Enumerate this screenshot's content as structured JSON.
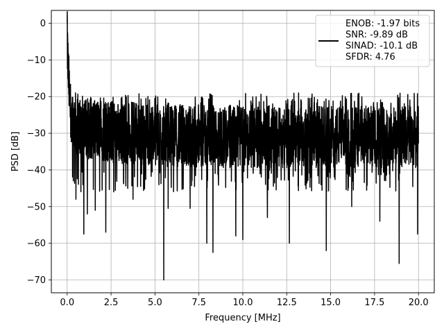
{
  "chart_data": {
    "type": "line",
    "xlabel": "Frequency [MHz]",
    "ylabel": "PSD [dB]",
    "xlim": [
      -0.9,
      20.9
    ],
    "ylim": [
      -73.5,
      3.5
    ],
    "xticks": [
      0.0,
      2.5,
      5.0,
      7.5,
      10.0,
      12.5,
      15.0,
      17.5,
      20.0
    ],
    "xtick_labels": [
      "0.0",
      "2.5",
      "5.0",
      "7.5",
      "10.0",
      "12.5",
      "15.0",
      "17.5",
      "20.0"
    ],
    "yticks": [
      0,
      -10,
      -20,
      -30,
      -40,
      -50,
      -60,
      -70
    ],
    "ytick_labels": [
      "0",
      "−10",
      "−20",
      "−30",
      "−40",
      "−50",
      "−60",
      "−70"
    ],
    "grid": true,
    "legend_position": "top-right",
    "series_color": "#000000",
    "legend_lines": [
      "ENOB: -1.97 bits",
      "SNR: -9.89 dB",
      "SINAD: -10.1 dB",
      "SFDR: 4.76"
    ],
    "series_summary": {
      "x_start": 0.0,
      "x_end": 20.0,
      "peak_value": 0,
      "peak_x": 0.0,
      "noise_floor_mean": -31,
      "noise_upper_typical": -22,
      "noise_lower_typical": -40
    },
    "notable_dips": [
      {
        "x": 0.35,
        "y": -43
      },
      {
        "x": 0.5,
        "y": -48
      },
      {
        "x": 0.95,
        "y": -57.5
      },
      {
        "x": 1.15,
        "y": -52
      },
      {
        "x": 1.6,
        "y": -51
      },
      {
        "x": 2.2,
        "y": -57
      },
      {
        "x": 2.65,
        "y": -46
      },
      {
        "x": 3.75,
        "y": -48
      },
      {
        "x": 5.5,
        "y": -70
      },
      {
        "x": 5.75,
        "y": -50.5
      },
      {
        "x": 7.0,
        "y": -50.5
      },
      {
        "x": 7.95,
        "y": -60
      },
      {
        "x": 8.3,
        "y": -62.5
      },
      {
        "x": 9.6,
        "y": -58
      },
      {
        "x": 10.0,
        "y": -59
      },
      {
        "x": 11.4,
        "y": -53
      },
      {
        "x": 12.65,
        "y": -60
      },
      {
        "x": 14.75,
        "y": -62
      },
      {
        "x": 16.2,
        "y": -50
      },
      {
        "x": 17.8,
        "y": -54
      },
      {
        "x": 18.9,
        "y": -65.5
      },
      {
        "x": 19.95,
        "y": -57.5
      }
    ]
  }
}
